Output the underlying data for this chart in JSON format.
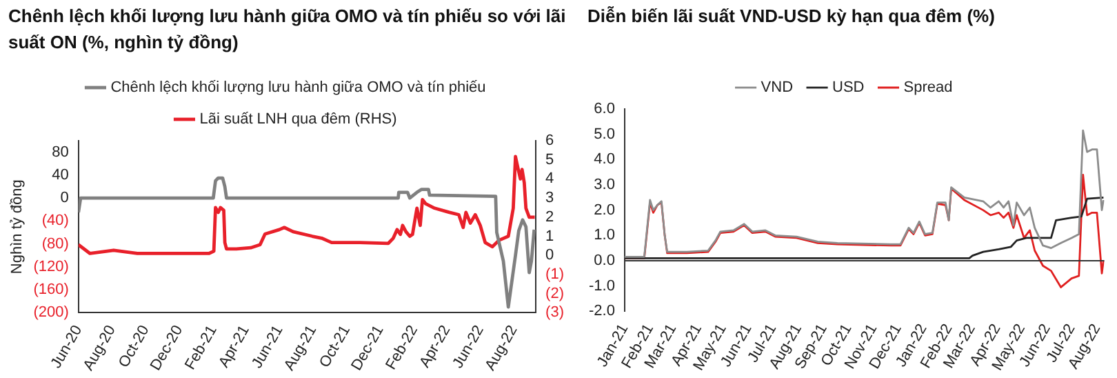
{
  "chart_data": [
    {
      "type": "line",
      "title": "Chênh lệch khối lượng lưu hành giữa OMO và tín phiếu so với lãi suất ON (%, nghìn tỷ đồng)",
      "ylabel": "Nghìn tỷ đồng",
      "legend": "top",
      "xlim": [
        "2020-06-01",
        "2022-09-10"
      ],
      "xticks": [
        {
          "value": "2020-06-01",
          "label": "Jun-20"
        },
        {
          "value": "2020-08-01",
          "label": "Aug-20"
        },
        {
          "value": "2020-10-01",
          "label": "Oct-20"
        },
        {
          "value": "2020-12-01",
          "label": "Dec-20"
        },
        {
          "value": "2021-02-01",
          "label": "Feb-21"
        },
        {
          "value": "2021-04-01",
          "label": "Apr-21"
        },
        {
          "value": "2021-06-01",
          "label": "Jun-21"
        },
        {
          "value": "2021-08-01",
          "label": "Aug-21"
        },
        {
          "value": "2021-10-01",
          "label": "Oct-21"
        },
        {
          "value": "2021-12-01",
          "label": "Dec-21"
        },
        {
          "value": "2022-02-01",
          "label": "Feb-22"
        },
        {
          "value": "2022-04-01",
          "label": "Apr-22"
        },
        {
          "value": "2022-06-01",
          "label": "Jun-22"
        },
        {
          "value": "2022-08-01",
          "label": "Aug-22"
        }
      ],
      "ylim": [
        -200,
        100
      ],
      "yticks": [
        {
          "value": -200,
          "label": "(200)"
        },
        {
          "value": -160,
          "label": "(160)"
        },
        {
          "value": -120,
          "label": "(120)"
        },
        {
          "value": -80,
          "label": "(80)"
        },
        {
          "value": -40,
          "label": "(40)"
        },
        0,
        40,
        80
      ],
      "y2lim": [
        -3,
        6
      ],
      "y2ticks": [
        {
          "value": -3,
          "label": "(3)"
        },
        {
          "value": -2,
          "label": "(2)"
        },
        {
          "value": -1,
          "label": "(1)"
        },
        0,
        1,
        2,
        3,
        4,
        5,
        6
      ],
      "series": [
        {
          "name": "Chênh lệch khối lượng lưu hành giữa OMO và tín phiếu",
          "color": "#808080",
          "x": [
            "2020-06-01",
            "2020-06-05",
            "2021-02-01",
            "2021-02-05",
            "2021-02-10",
            "2021-02-18",
            "2021-02-22",
            "2021-02-25",
            "2022-01-03",
            "2022-01-04",
            "2022-01-20",
            "2022-01-24",
            "2022-02-06",
            "2022-02-14",
            "2022-02-27",
            "2022-03-01",
            "2022-06-29",
            "2022-07-01",
            "2022-07-13",
            "2022-07-22",
            "2022-08-04",
            "2022-08-10",
            "2022-08-17",
            "2022-08-23",
            "2022-08-29",
            "2022-09-02",
            "2022-09-07"
          ],
          "values": [
            -25,
            0,
            0,
            30,
            35,
            35,
            20,
            0,
            0,
            10,
            10,
            0,
            10,
            15,
            15,
            5,
            3,
            -60,
            -110,
            -190,
            -100,
            -57,
            -38,
            -50,
            -130,
            -110,
            -55
          ]
        },
        {
          "name": "Lãi suất LNH qua đêm (RHS)",
          "color": "#e8202a",
          "axis": "y2",
          "x": [
            "2020-06-01",
            "2020-06-22",
            "2020-08-04",
            "2020-09-16",
            "2021-01-24",
            "2021-02-02",
            "2021-02-05",
            "2021-02-10",
            "2021-02-14",
            "2021-02-20",
            "2021-02-22",
            "2021-02-25",
            "2021-03-15",
            "2021-04-10",
            "2021-04-27",
            "2021-05-06",
            "2021-06-01",
            "2021-06-10",
            "2021-06-26",
            "2021-07-31",
            "2021-08-17",
            "2021-09-04",
            "2021-10-25",
            "2021-12-16",
            "2021-12-25",
            "2022-01-01",
            "2022-01-07",
            "2022-01-11",
            "2022-01-17",
            "2022-01-24",
            "2022-01-29",
            "2022-02-02",
            "2022-02-06",
            "2022-02-12",
            "2022-02-16",
            "2022-02-22",
            "2022-03-10",
            "2022-04-06",
            "2022-04-23",
            "2022-05-01",
            "2022-05-06",
            "2022-05-14",
            "2022-05-23",
            "2022-06-01",
            "2022-06-10",
            "2022-06-23",
            "2022-07-05",
            "2022-07-22",
            "2022-07-31",
            "2022-08-04",
            "2022-08-09",
            "2022-08-13",
            "2022-08-16",
            "2022-08-20",
            "2022-08-23",
            "2022-08-29",
            "2022-09-08"
          ],
          "values": [
            0.56,
            0.1,
            0.27,
            0.1,
            0.1,
            0.22,
            2.5,
            2.25,
            2.5,
            2.36,
            0.67,
            0.34,
            0.34,
            0.4,
            0.56,
            1.12,
            1.35,
            1.46,
            1.24,
            1.0,
            0.9,
            0.67,
            0.67,
            0.63,
            0.9,
            1.35,
            1.1,
            1.57,
            1.24,
            1.0,
            1.1,
            1.8,
            2.47,
            1.57,
            2.92,
            2.7,
            2.47,
            2.25,
            2.13,
            1.46,
            2.25,
            1.69,
            2.13,
            1.57,
            0.67,
            0.45,
            0.79,
            1.0,
            2.47,
            5.17,
            4.5,
            4.0,
            4.5,
            3.8,
            2.47,
            2.0,
            2.0
          ]
        }
      ]
    },
    {
      "type": "line",
      "title": "Diễn biến lãi suất VND-USD kỳ hạn qua đêm (%)",
      "legend": "top",
      "xlim": [
        "2021-01-01",
        "2022-08-10"
      ],
      "xticks": [
        {
          "value": "2021-01-01",
          "label": "Jan-21"
        },
        {
          "value": "2021-02-01",
          "label": "Feb-21"
        },
        {
          "value": "2021-03-01",
          "label": "Mar-21"
        },
        {
          "value": "2021-04-01",
          "label": "Apr-21"
        },
        {
          "value": "2021-05-01",
          "label": "May-21"
        },
        {
          "value": "2021-06-01",
          "label": "Jun-21"
        },
        {
          "value": "2021-07-01",
          "label": "Jul-21"
        },
        {
          "value": "2021-08-01",
          "label": "Aug-21"
        },
        {
          "value": "2021-09-01",
          "label": "Sep-21"
        },
        {
          "value": "2021-10-01",
          "label": "Oct-21"
        },
        {
          "value": "2021-11-01",
          "label": "Nov-21"
        },
        {
          "value": "2021-12-01",
          "label": "Dec-21"
        },
        {
          "value": "2022-01-01",
          "label": "Jan-22"
        },
        {
          "value": "2022-02-01",
          "label": "Feb-22"
        },
        {
          "value": "2022-03-01",
          "label": "Mar-22"
        },
        {
          "value": "2022-04-01",
          "label": "Apr-22"
        },
        {
          "value": "2022-05-01",
          "label": "May-22"
        },
        {
          "value": "2022-06-01",
          "label": "Jun-22"
        },
        {
          "value": "2022-07-01",
          "label": "Jul-22"
        },
        {
          "value": "2022-08-01",
          "label": "Aug-22"
        }
      ],
      "ylim": [
        -2,
        6
      ],
      "yticks": [
        {
          "value": -2,
          "label": "-2.0"
        },
        {
          "value": -1,
          "label": "-1.0"
        },
        {
          "value": 0,
          "label": "0.0"
        },
        {
          "value": 1,
          "label": "1.0"
        },
        {
          "value": 2,
          "label": "2.0"
        },
        {
          "value": 3,
          "label": "3.0"
        },
        {
          "value": 4,
          "label": "4.0"
        },
        {
          "value": 5,
          "label": "5.0"
        },
        {
          "value": 6,
          "label": "6.0"
        }
      ],
      "series": [
        {
          "name": "VND",
          "color": "#8c8c8c",
          "x": [
            "2021-01-01",
            "2021-01-25",
            "2021-02-01",
            "2021-02-05",
            "2021-02-10",
            "2021-02-15",
            "2021-02-19",
            "2021-02-22",
            "2021-03-18",
            "2021-04-13",
            "2021-04-22",
            "2021-04-28",
            "2021-05-14",
            "2021-05-27",
            "2021-06-06",
            "2021-06-22",
            "2021-07-04",
            "2021-07-30",
            "2021-08-25",
            "2021-09-18",
            "2021-11-22",
            "2021-12-04",
            "2021-12-14",
            "2021-12-20",
            "2021-12-27",
            "2022-01-03",
            "2022-01-12",
            "2022-01-18",
            "2022-01-28",
            "2022-02-01",
            "2022-02-04",
            "2022-02-20",
            "2022-03-15",
            "2022-03-24",
            "2022-04-03",
            "2022-04-09",
            "2022-04-15",
            "2022-04-21",
            "2022-04-25",
            "2022-05-04",
            "2022-05-11",
            "2022-05-17",
            "2022-05-27",
            "2022-06-06",
            "2022-06-18",
            "2022-07-01",
            "2022-07-10",
            "2022-07-15",
            "2022-07-20",
            "2022-07-26",
            "2022-08-01",
            "2022-08-07",
            "2022-08-09"
          ],
          "values": [
            0.15,
            0.15,
            2.4,
            2.0,
            2.2,
            2.35,
            1.0,
            0.35,
            0.35,
            0.4,
            0.8,
            1.15,
            1.2,
            1.45,
            1.15,
            1.2,
            1.0,
            0.95,
            0.75,
            0.7,
            0.65,
            0.65,
            1.3,
            1.1,
            1.55,
            1.05,
            1.1,
            2.3,
            2.3,
            1.6,
            2.9,
            2.5,
            2.35,
            2.1,
            2.35,
            2.1,
            2.35,
            1.4,
            2.3,
            1.8,
            2.1,
            1.3,
            0.6,
            0.5,
            0.7,
            0.9,
            1.05,
            5.15,
            4.3,
            4.4,
            4.4,
            2.0,
            2.4
          ]
        },
        {
          "name": "USD",
          "color": "#222222",
          "x": [
            "2021-01-01",
            "2022-02-26",
            "2022-03-02",
            "2022-03-15",
            "2022-04-03",
            "2022-04-18",
            "2022-04-25",
            "2022-05-07",
            "2022-06-06",
            "2022-06-12",
            "2022-07-01",
            "2022-07-13",
            "2022-07-20",
            "2022-08-09"
          ],
          "values": [
            0.1,
            0.1,
            0.2,
            0.35,
            0.45,
            0.55,
            0.8,
            0.9,
            0.9,
            1.6,
            1.7,
            1.75,
            2.45,
            2.5
          ]
        },
        {
          "name": "Spread",
          "color": "#e02020",
          "x": [
            "2021-01-01",
            "2021-01-25",
            "2021-02-01",
            "2021-02-05",
            "2021-02-10",
            "2021-02-15",
            "2021-02-19",
            "2021-02-22",
            "2021-03-18",
            "2021-04-13",
            "2021-04-22",
            "2021-04-28",
            "2021-05-14",
            "2021-05-27",
            "2021-06-06",
            "2021-06-22",
            "2021-07-04",
            "2021-07-30",
            "2021-08-25",
            "2021-09-18",
            "2021-11-22",
            "2021-12-04",
            "2021-12-14",
            "2021-12-20",
            "2021-12-27",
            "2022-01-03",
            "2022-01-12",
            "2022-01-18",
            "2022-01-28",
            "2022-02-01",
            "2022-02-04",
            "2022-02-20",
            "2022-03-15",
            "2022-03-24",
            "2022-04-03",
            "2022-04-09",
            "2022-04-15",
            "2022-04-21",
            "2022-04-25",
            "2022-05-04",
            "2022-05-11",
            "2022-05-17",
            "2022-05-27",
            "2022-06-06",
            "2022-06-18",
            "2022-07-01",
            "2022-07-10",
            "2022-07-15",
            "2022-07-20",
            "2022-07-26",
            "2022-08-01",
            "2022-08-07",
            "2022-08-09"
          ],
          "values": [
            0.1,
            0.1,
            2.3,
            1.9,
            2.2,
            2.3,
            1.0,
            0.3,
            0.3,
            0.35,
            0.75,
            1.1,
            1.15,
            1.4,
            1.1,
            1.15,
            0.95,
            0.9,
            0.7,
            0.65,
            0.6,
            0.6,
            1.25,
            1.05,
            1.5,
            1.0,
            1.05,
            2.25,
            2.2,
            1.6,
            2.85,
            2.4,
            2.0,
            1.8,
            1.9,
            1.7,
            1.9,
            1.3,
            1.8,
            0.9,
            1.2,
            0.4,
            -0.2,
            -0.4,
            -1.05,
            -0.7,
            -0.6,
            3.4,
            1.8,
            1.9,
            1.9,
            -0.5,
            0
          ]
        }
      ]
    }
  ]
}
